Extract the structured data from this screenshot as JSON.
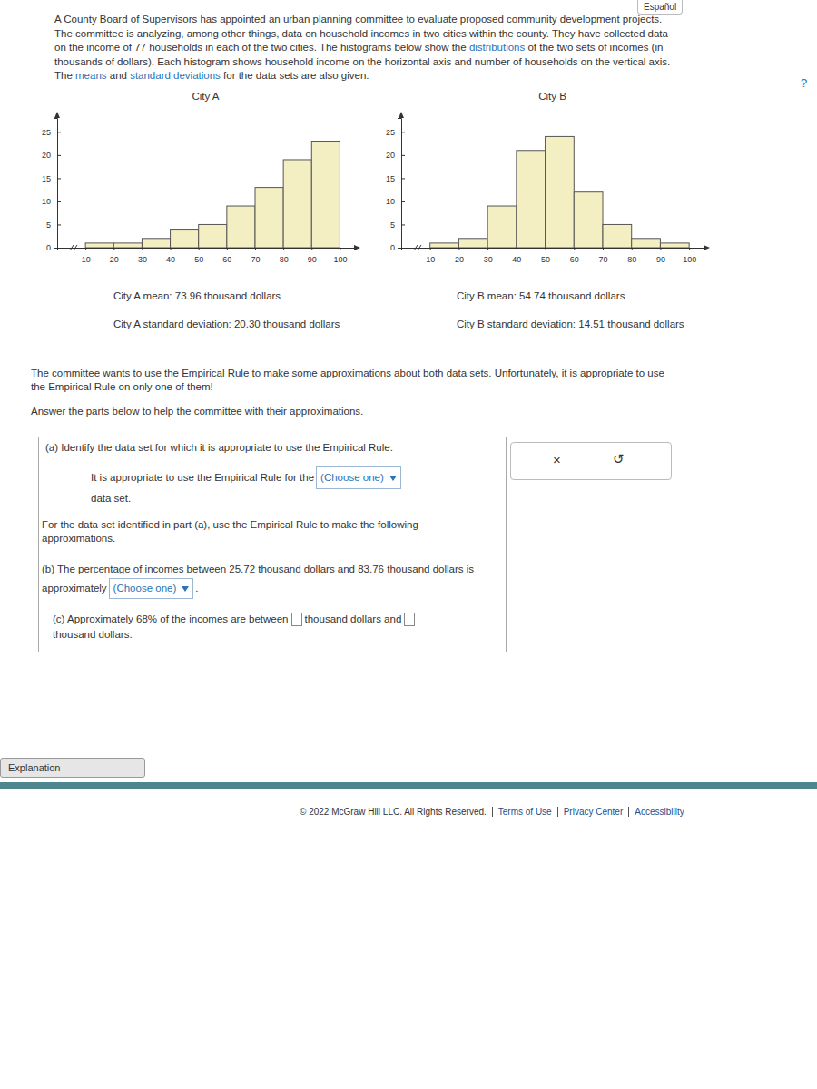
{
  "page": {
    "language_link": "Español",
    "help": "?",
    "intro": [
      {
        "text": "A County Board of Supervisors has appointed an urban planning committee to evaluate proposed community development projects. The committee is analyzing, among other things, data on household incomes in two cities within the county. They have collected data on the income of 77 households in each of the two cities. The histograms below show the "
      },
      {
        "text": "distributions",
        "link": true
      },
      {
        "text": " of the two sets of incomes (in thousands of dollars). Each histogram shows household income on the horizontal axis and number of households on the vertical axis. The "
      },
      {
        "text": "means",
        "link": true
      },
      {
        "text": " and "
      },
      {
        "text": "standard deviations",
        "link": true
      },
      {
        "text": " for the data sets are also given."
      }
    ],
    "paragraph1": "The committee wants to use the Empirical Rule to make some approximations about both data sets. Unfortunately, it is appropriate to use the Empirical Rule on only one of them!",
    "paragraph2": "Answer the parts below to help the committee with their approximations.",
    "part_a": {
      "prompt": "(a) Identify the data set for which it is appropriate to use the Empirical Rule.",
      "before": "It is appropriate to use the Empirical Rule for the",
      "select": "(Choose one)",
      "after": "data set."
    },
    "instructions": "For the data set identified in part (a), use the Empirical Rule to make the following approximations.",
    "part_b": {
      "before": "(b) The percentage of incomes between 25.72 thousand dollars and 83.76 thousand dollars is approximately",
      "select": "(Choose one)",
      "after": "."
    },
    "part_c": {
      "before": "(c) Approximately 68% of the incomes are between",
      "middle": "thousand dollars and",
      "after": "thousand dollars."
    },
    "buttons": {
      "clear": "×",
      "undo": "↺"
    },
    "explanation": "Explanation",
    "footer": [
      "© 2022 McGraw Hill LLC. All Rights Reserved.",
      "Terms of Use",
      "Privacy Center",
      "Accessibility"
    ]
  },
  "chart_data": [
    {
      "type": "histogram",
      "title": "City A",
      "bins": [
        10,
        20,
        30,
        40,
        50,
        60,
        70,
        80,
        90,
        100
      ],
      "counts": [
        1,
        1,
        2,
        4,
        5,
        9,
        13,
        19,
        23
      ],
      "color": "#f3efc2",
      "xlim": [
        0,
        105
      ],
      "xticks": [
        10,
        20,
        30,
        40,
        50,
        60,
        70,
        80,
        90,
        100
      ],
      "ylim": [
        0,
        28
      ],
      "yticks": [
        0,
        5,
        10,
        15,
        20,
        25
      ],
      "annotations": [
        "City A mean: 73.96 thousand dollars",
        "City A standard deviation: 20.30 thousand dollars"
      ]
    },
    {
      "type": "histogram",
      "title": "City B",
      "bins": [
        10,
        20,
        30,
        40,
        50,
        60,
        70,
        80,
        90,
        100
      ],
      "counts": [
        1,
        2,
        9,
        21,
        24,
        12,
        5,
        2,
        1
      ],
      "color": "#f3efc2",
      "xlim": [
        0,
        105
      ],
      "xticks": [
        10,
        20,
        30,
        40,
        50,
        60,
        70,
        80,
        90,
        100
      ],
      "ylim": [
        0,
        28
      ],
      "yticks": [
        0,
        5,
        10,
        15,
        20,
        25
      ],
      "annotations": [
        "City B mean: 54.74 thousand dollars",
        "City B standard deviation: 14.51 thousand dollars"
      ]
    }
  ]
}
